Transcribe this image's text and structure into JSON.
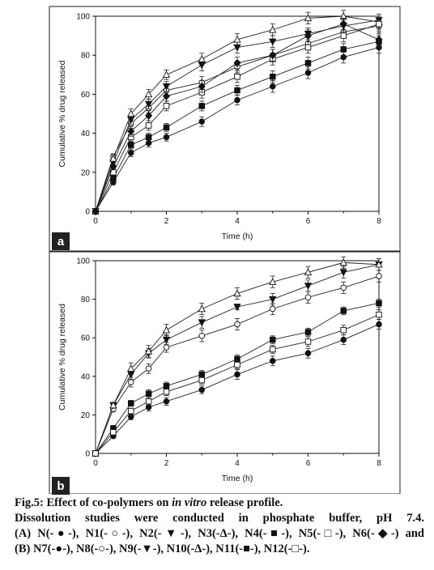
{
  "figure": {
    "panel_labels": [
      "a",
      "b"
    ]
  },
  "caption": {
    "title_prefix": "Fig.5: Effect of co-polymers on ",
    "title_italic": "in vitro",
    "title_suffix": " release profile.",
    "line2": "Dissolution studies were conducted in phosphate buffer, pH 7.4.",
    "line3": "(A) N(-●-), N1(-○-), N2(-▼-), N3(-Δ-), N4(-■-), N5(-□-), N6(-◆-) and",
    "line4": "(B) N7(-●-), N8(-○-), N9(-▼-), N10(-Δ-), N11(-■-), N12(-□-)."
  },
  "chart_data": [
    {
      "panel": "a",
      "type": "line",
      "xlabel": "Time (h)",
      "ylabel": "Cumulative % drug released",
      "xlim": [
        0,
        8
      ],
      "ylim": [
        0,
        100
      ],
      "xticks": [
        "0",
        "2",
        "4",
        "6",
        "8"
      ],
      "yticks": [
        "0",
        "20",
        "40",
        "60",
        "80",
        "100"
      ],
      "grid": false,
      "legend": "none",
      "x": [
        0,
        0.5,
        1,
        1.5,
        2,
        3,
        4,
        5,
        6,
        7,
        8
      ],
      "series": [
        {
          "name": "N",
          "marker": "circle-filled",
          "values": [
            0,
            15,
            30,
            35,
            38,
            46,
            57,
            64,
            71,
            79,
            84
          ],
          "errors": [
            0,
            1.5,
            2,
            2,
            2,
            2.5,
            2.5,
            3,
            3,
            3,
            3
          ]
        },
        {
          "name": "N1",
          "marker": "circle-open",
          "values": [
            0,
            28,
            45,
            53,
            62,
            66,
            74,
            80,
            86,
            92,
            95
          ],
          "errors": [
            0,
            1.5,
            2.5,
            2.5,
            2.5,
            3,
            3,
            3,
            3,
            3,
            3
          ]
        },
        {
          "name": "N2",
          "marker": "triangle-down-filled",
          "values": [
            0,
            25,
            47,
            55,
            64,
            75,
            84,
            87,
            91,
            95,
            98
          ],
          "errors": [
            0,
            1.5,
            2.5,
            2.5,
            2.5,
            3,
            3,
            3,
            3,
            3,
            3
          ]
        },
        {
          "name": "N3",
          "marker": "triangle-up-open",
          "values": [
            0,
            27,
            50,
            60,
            70,
            78,
            88,
            93,
            99,
            100,
            97
          ],
          "errors": [
            0,
            1.5,
            2.5,
            2.5,
            2.5,
            3,
            3,
            3,
            3,
            3,
            3
          ]
        },
        {
          "name": "N4",
          "marker": "square-filled",
          "values": [
            0,
            17,
            34,
            38,
            43,
            54,
            62,
            69,
            76,
            83,
            87
          ],
          "errors": [
            0,
            1.5,
            2,
            2,
            2,
            2.5,
            2.5,
            3,
            3,
            3,
            3
          ]
        },
        {
          "name": "N5",
          "marker": "square-open",
          "values": [
            0,
            20,
            38,
            44,
            54,
            61,
            69,
            78,
            84,
            90,
            96
          ],
          "errors": [
            0,
            1.5,
            2.5,
            2.5,
            2.5,
            3,
            3,
            3,
            3,
            3,
            3
          ]
        },
        {
          "name": "N6",
          "marker": "diamond-filled",
          "values": [
            0,
            23,
            41,
            49,
            59,
            64,
            76,
            80,
            90,
            96,
            88
          ],
          "errors": [
            0,
            1.5,
            2.5,
            2.5,
            2.5,
            3,
            3,
            3,
            3,
            3,
            3
          ]
        }
      ]
    },
    {
      "panel": "b",
      "type": "line",
      "xlabel": "Time (h)",
      "ylabel": "Cumulative % drug released",
      "xlim": [
        0,
        8
      ],
      "ylim": [
        0,
        100
      ],
      "xticks": [
        "0",
        "2",
        "4",
        "6",
        "8"
      ],
      "yticks": [
        "0",
        "20",
        "40",
        "60",
        "80",
        "100"
      ],
      "grid": false,
      "legend": "none",
      "x": [
        0,
        0.5,
        1,
        1.5,
        2,
        3,
        4,
        5,
        6,
        7,
        8
      ],
      "series": [
        {
          "name": "N7",
          "marker": "circle-filled",
          "values": [
            0,
            9,
            19,
            24,
            27,
            33,
            41,
            48,
            52,
            59,
            67
          ],
          "errors": [
            0,
            1,
            1.5,
            2,
            2,
            2,
            2.5,
            2.5,
            2.5,
            2.5,
            2.5
          ]
        },
        {
          "name": "N8",
          "marker": "circle-open",
          "values": [
            0,
            23,
            37,
            44,
            55,
            61,
            67,
            75,
            81,
            86,
            92
          ],
          "errors": [
            0,
            1.5,
            2.5,
            2.5,
            2.5,
            3,
            3,
            3,
            3,
            3,
            3
          ]
        },
        {
          "name": "N9",
          "marker": "triangle-down-filled",
          "values": [
            0,
            25,
            41,
            52,
            59,
            68,
            76,
            80,
            87,
            94,
            98
          ],
          "errors": [
            0,
            1.5,
            2.5,
            2.5,
            2.5,
            3,
            1.5,
            3,
            3,
            3,
            3
          ]
        },
        {
          "name": "N10",
          "marker": "triangle-up-open",
          "values": [
            0,
            25,
            44,
            53,
            64,
            75,
            83,
            89,
            94,
            99,
            98
          ],
          "errors": [
            0,
            1.5,
            3,
            3,
            3,
            3,
            3,
            3,
            3,
            3,
            3
          ]
        },
        {
          "name": "N11",
          "marker": "square-filled",
          "values": [
            0,
            13,
            26,
            31,
            35,
            41,
            49,
            59,
            63,
            74,
            78
          ],
          "errors": [
            0,
            1.5,
            1.5,
            2,
            2,
            2,
            2,
            2,
            2,
            2,
            2
          ]
        },
        {
          "name": "N12",
          "marker": "square-open",
          "values": [
            0,
            11,
            22,
            27,
            32,
            38,
            46,
            54,
            58,
            64,
            72
          ],
          "errors": [
            0,
            1.5,
            1.5,
            2,
            2,
            2,
            2,
            2,
            2.5,
            2.5,
            2.5
          ]
        }
      ]
    }
  ]
}
